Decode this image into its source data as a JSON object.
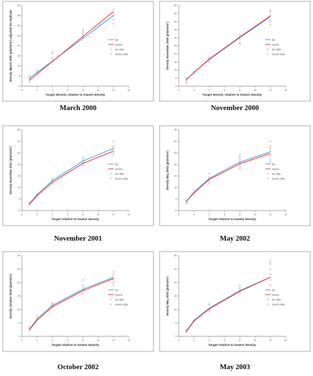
{
  "colors": {
    "lax": "#5b9bd5",
    "severe": "#e0413a",
    "lax_pts": "#9dc3e6",
    "severe_pts": "#f4a6a3",
    "frame": "#9a9a9a"
  },
  "chart_data": [
    {
      "type": "scatter",
      "caption": "March 2000",
      "title": "",
      "xlabel": "Target density relative to lowest density",
      "ylabel": "Density March 2000 (plants/m²) adjusted for replicate",
      "xlim": [
        0,
        14
      ],
      "ylim": [
        0,
        40
      ],
      "xticks": [
        "0",
        "2",
        "4",
        "6",
        "8",
        "10",
        "12",
        "14"
      ],
      "yticks": [
        "0",
        "5",
        "10",
        "15",
        "20",
        "25",
        "30",
        "35",
        "40"
      ],
      "legend": [
        "lax",
        "severe",
        "lax data",
        "severe data"
      ],
      "legend_position": "right",
      "series": [
        {
          "name": "lax",
          "kind": "line",
          "x": [
            1,
            12
          ],
          "y": [
            4,
            35
          ]
        },
        {
          "name": "severe",
          "kind": "line",
          "x": [
            1,
            12
          ],
          "y": [
            3,
            37
          ]
        },
        {
          "name": "lax data",
          "kind": "points",
          "x": [
            1,
            1,
            2,
            4,
            4,
            8,
            8,
            8,
            12,
            12,
            12
          ],
          "y": [
            3,
            5,
            8,
            14,
            16,
            26,
            28,
            24,
            33,
            36,
            38
          ]
        },
        {
          "name": "severe data",
          "kind": "points",
          "x": [
            1,
            1,
            2,
            4,
            4,
            8,
            8,
            12,
            12
          ],
          "y": [
            2,
            4,
            7,
            13,
            17,
            27,
            25,
            35,
            31
          ]
        }
      ]
    },
    {
      "type": "scatter",
      "caption": "November 2000",
      "title": "",
      "xlabel": "Target density relative to lowest density",
      "ylabel": "Density November 2000 (plants/m²)",
      "xlim": [
        0,
        14
      ],
      "ylim": [
        0,
        50
      ],
      "xticks": [
        "0",
        "2",
        "4",
        "6",
        "8",
        "10",
        "12",
        "14"
      ],
      "yticks": [
        "0",
        "5",
        "10",
        "15",
        "20",
        "25",
        "30",
        "35",
        "40",
        "45",
        "50"
      ],
      "legend": [
        "lax",
        "severe",
        "lax data",
        "severe data"
      ],
      "legend_position": "right",
      "series": [
        {
          "name": "lax",
          "kind": "line",
          "x": [
            1,
            2,
            4,
            8,
            12
          ],
          "y": [
            4,
            8.5,
            16.5,
            30,
            43
          ]
        },
        {
          "name": "severe",
          "kind": "line",
          "x": [
            1,
            2,
            4,
            8,
            12
          ],
          "y": [
            4,
            8.5,
            16.8,
            30.5,
            43.5
          ]
        },
        {
          "name": "lax data",
          "kind": "points",
          "x": [
            1,
            1,
            2,
            4,
            4,
            8,
            8,
            8,
            12,
            12,
            12
          ],
          "y": [
            3,
            5,
            8,
            16,
            18,
            29,
            32,
            27,
            41,
            46,
            40
          ]
        },
        {
          "name": "severe data",
          "kind": "points",
          "x": [
            1,
            1,
            2,
            4,
            4,
            8,
            8,
            12,
            12,
            12
          ],
          "y": [
            2,
            4,
            9,
            15,
            17,
            31,
            26,
            44,
            38,
            47
          ]
        }
      ]
    },
    {
      "type": "scatter",
      "caption": "November 2001",
      "title": "",
      "xlabel": "Target relative to lowest density",
      "ylabel": "Density November 2001 (plants/m²)",
      "xlim": [
        0,
        14
      ],
      "ylim": [
        0,
        35
      ],
      "xticks": [
        "0",
        "2",
        "4",
        "6",
        "8",
        "10",
        "12",
        "14"
      ],
      "yticks": [
        "0",
        "5",
        "10",
        "15",
        "20",
        "25",
        "30",
        "35"
      ],
      "legend": [
        "lax",
        "severe",
        "lax data",
        "severe data"
      ],
      "legend_position": "right",
      "series": [
        {
          "name": "lax",
          "kind": "line",
          "x": [
            1,
            2,
            4,
            8,
            12
          ],
          "y": [
            3,
            7,
            13,
            21.5,
            27
          ]
        },
        {
          "name": "severe",
          "kind": "line",
          "x": [
            1,
            2,
            4,
            8,
            12
          ],
          "y": [
            2.8,
            6.5,
            12.3,
            20.5,
            25.8
          ]
        },
        {
          "name": "lax data",
          "kind": "points",
          "x": [
            1,
            1,
            2,
            4,
            4,
            8,
            8,
            8,
            12,
            12,
            12
          ],
          "y": [
            2.5,
            3.5,
            6.8,
            12.5,
            13.8,
            22,
            23,
            20,
            28,
            30,
            25
          ]
        },
        {
          "name": "severe data",
          "kind": "points",
          "x": [
            1,
            1,
            2,
            4,
            4,
            8,
            8,
            12,
            12,
            12
          ],
          "y": [
            2.8,
            3.2,
            7,
            12,
            13.2,
            21,
            19.5,
            26.5,
            24,
            27.5
          ]
        }
      ]
    },
    {
      "type": "scatter",
      "caption": "May 2002",
      "title": "",
      "xlabel": "Target relative to lowest density",
      "ylabel": "Density May 2002 (plants/m²)",
      "xlim": [
        0,
        14
      ],
      "ylim": [
        0,
        35
      ],
      "xticks": [
        "0",
        "2",
        "4",
        "6",
        "8",
        "10",
        "12",
        "14"
      ],
      "yticks": [
        "0",
        "5",
        "10",
        "15",
        "20",
        "25",
        "30",
        "35"
      ],
      "legend": [
        "lax",
        "severe",
        "lax data",
        "severe data"
      ],
      "legend_position": "right",
      "series": [
        {
          "name": "lax",
          "kind": "line",
          "x": [
            1,
            2,
            4,
            8,
            12
          ],
          "y": [
            4,
            8,
            14,
            21,
            25.5
          ]
        },
        {
          "name": "severe",
          "kind": "line",
          "x": [
            1,
            2,
            4,
            8,
            12
          ],
          "y": [
            4,
            7.6,
            13.5,
            20.3,
            24.8
          ]
        },
        {
          "name": "lax data",
          "kind": "points",
          "x": [
            1,
            1,
            2,
            4,
            4,
            8,
            8,
            8,
            8,
            12,
            12,
            12
          ],
          "y": [
            3.5,
            4.5,
            9,
            13,
            16,
            19,
            21,
            23,
            24,
            22,
            26,
            30
          ]
        },
        {
          "name": "severe data",
          "kind": "points",
          "x": [
            1,
            1,
            2,
            4,
            4,
            8,
            8,
            8,
            12,
            12,
            12,
            12
          ],
          "y": [
            3,
            4,
            7.5,
            12,
            14.5,
            18,
            20,
            22,
            21,
            24,
            27,
            28
          ]
        }
      ]
    },
    {
      "type": "scatter",
      "caption": "October 2002",
      "title": "",
      "xlabel": "Target relative to lowest density",
      "ylabel": "Density October 2002 (plants/m²)",
      "xlim": [
        0,
        14
      ],
      "ylim": [
        0,
        30
      ],
      "xticks": [
        "0",
        "2",
        "4",
        "6",
        "8",
        "10",
        "12",
        "14"
      ],
      "yticks": [
        "0",
        "5",
        "10",
        "15",
        "20",
        "25",
        "30"
      ],
      "legend": [
        "lax",
        "severe",
        "lax data",
        "severe data"
      ],
      "legend_position": "right",
      "series": [
        {
          "name": "lax",
          "kind": "line",
          "x": [
            1,
            2,
            4,
            8,
            12
          ],
          "y": [
            2.7,
            6.5,
            11.5,
            17.5,
            22
          ]
        },
        {
          "name": "severe",
          "kind": "line",
          "x": [
            1,
            2,
            4,
            8,
            12
          ],
          "y": [
            2.5,
            6,
            11,
            17,
            21.5
          ]
        },
        {
          "name": "lax data",
          "kind": "points",
          "x": [
            1,
            1,
            2,
            4,
            4,
            8,
            8,
            8,
            12,
            12,
            12
          ],
          "y": [
            2,
            3,
            7.5,
            11.5,
            12,
            17,
            19,
            21,
            20,
            22,
            24
          ]
        },
        {
          "name": "severe data",
          "kind": "points",
          "x": [
            1,
            1,
            2,
            4,
            4,
            8,
            8,
            12,
            12,
            12
          ],
          "y": [
            2.5,
            3.5,
            6.5,
            11,
            12.3,
            16,
            18,
            21,
            23,
            19
          ]
        }
      ]
    },
    {
      "type": "scatter",
      "caption": "May 2003",
      "title": "",
      "xlabel": "Target relative to lowest density",
      "ylabel": "Density May 2003 (plants/m²)",
      "xlim": [
        0,
        14
      ],
      "ylim": [
        0,
        30
      ],
      "xticks": [
        "0",
        "2",
        "4",
        "6",
        "8",
        "10",
        "12",
        "14"
      ],
      "yticks": [
        "0",
        "5",
        "10",
        "15",
        "20",
        "25",
        "30"
      ],
      "legend": [
        "lax",
        "severe",
        "lax data",
        "severe data"
      ],
      "legend_position": "right",
      "series": [
        {
          "name": "lax",
          "kind": "line",
          "x": [
            1,
            2,
            4,
            8,
            12
          ],
          "y": [
            2,
            6,
            10.5,
            17,
            22
          ]
        },
        {
          "name": "severe",
          "kind": "line",
          "x": [
            1,
            2,
            4,
            8,
            12
          ],
          "y": [
            1.8,
            5.7,
            10.2,
            16.7,
            22
          ]
        },
        {
          "name": "lax data",
          "kind": "points",
          "x": [
            1,
            1,
            2,
            4,
            4,
            8,
            8,
            8,
            12,
            12,
            12
          ],
          "y": [
            1.5,
            2.5,
            6,
            10,
            11.5,
            16,
            18,
            19,
            21,
            25,
            27
          ]
        },
        {
          "name": "severe data",
          "kind": "points",
          "x": [
            1,
            1,
            2,
            4,
            4,
            8,
            8,
            12,
            12,
            12
          ],
          "y": [
            1.7,
            2.2,
            5.5,
            9.5,
            12,
            16.5,
            17.5,
            19,
            23,
            28
          ]
        }
      ]
    }
  ]
}
